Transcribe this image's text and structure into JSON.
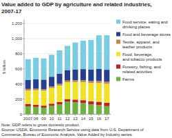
{
  "chart_data": {
    "type": "bar",
    "stacked": true,
    "title": "Value added to GDP by agriculture and related industries, 2007-17",
    "ylabel": "$ billion",
    "annotations": [
      "Note: GDP refers to gross domestic product.\nSource: USDA, Economic Research Service using data from U.S. Department of\nCommerce, Bureau of Economic Analysis, Value Added by Industry series."
    ],
    "categories": [
      "2007",
      "08",
      "09",
      "10",
      "11",
      "12",
      "13",
      "14",
      "15",
      "16",
      "17"
    ],
    "series": [
      {
        "name": "Farms",
        "color": "#6db33f",
        "values": [
          105,
          98,
          88,
          112,
          132,
          168,
          158,
          148,
          132,
          122,
          108
        ]
      },
      {
        "name": "Forestry, fishing, and\nrelated activities",
        "color": "#be2027",
        "values": [
          32,
          28,
          26,
          28,
          30,
          33,
          36,
          38,
          40,
          43,
          43
        ]
      },
      {
        "name": "Food, beverage,\nand tobacco products",
        "color": "#f2e227",
        "values": [
          175,
          192,
          198,
          208,
          218,
          222,
          232,
          238,
          242,
          248,
          252
        ]
      },
      {
        "name": "Textile, apparel, and\nleather products",
        "color": "#c8884a",
        "values": [
          23,
          20,
          18,
          20,
          22,
          23,
          24,
          25,
          26,
          27,
          27
        ]
      },
      {
        "name": "Food and beverage stores",
        "color": "#253f8e",
        "values": [
          118,
          123,
          128,
          128,
          132,
          138,
          143,
          148,
          153,
          158,
          158
        ]
      },
      {
        "name": "Food service, eating and\ndrinking places",
        "color": "#79cce2",
        "values": [
          275,
          285,
          280,
          290,
          310,
          320,
          355,
          375,
          390,
          445,
          455
        ]
      }
    ],
    "ylim": [
      0,
      1250
    ],
    "yticks": [
      0,
      200,
      400,
      600,
      800,
      {
        "value": 1000,
        "label": "1,000"
      },
      {
        "value": 1200,
        "label": "1,200"
      }
    ],
    "grid": true,
    "legend": "right"
  }
}
